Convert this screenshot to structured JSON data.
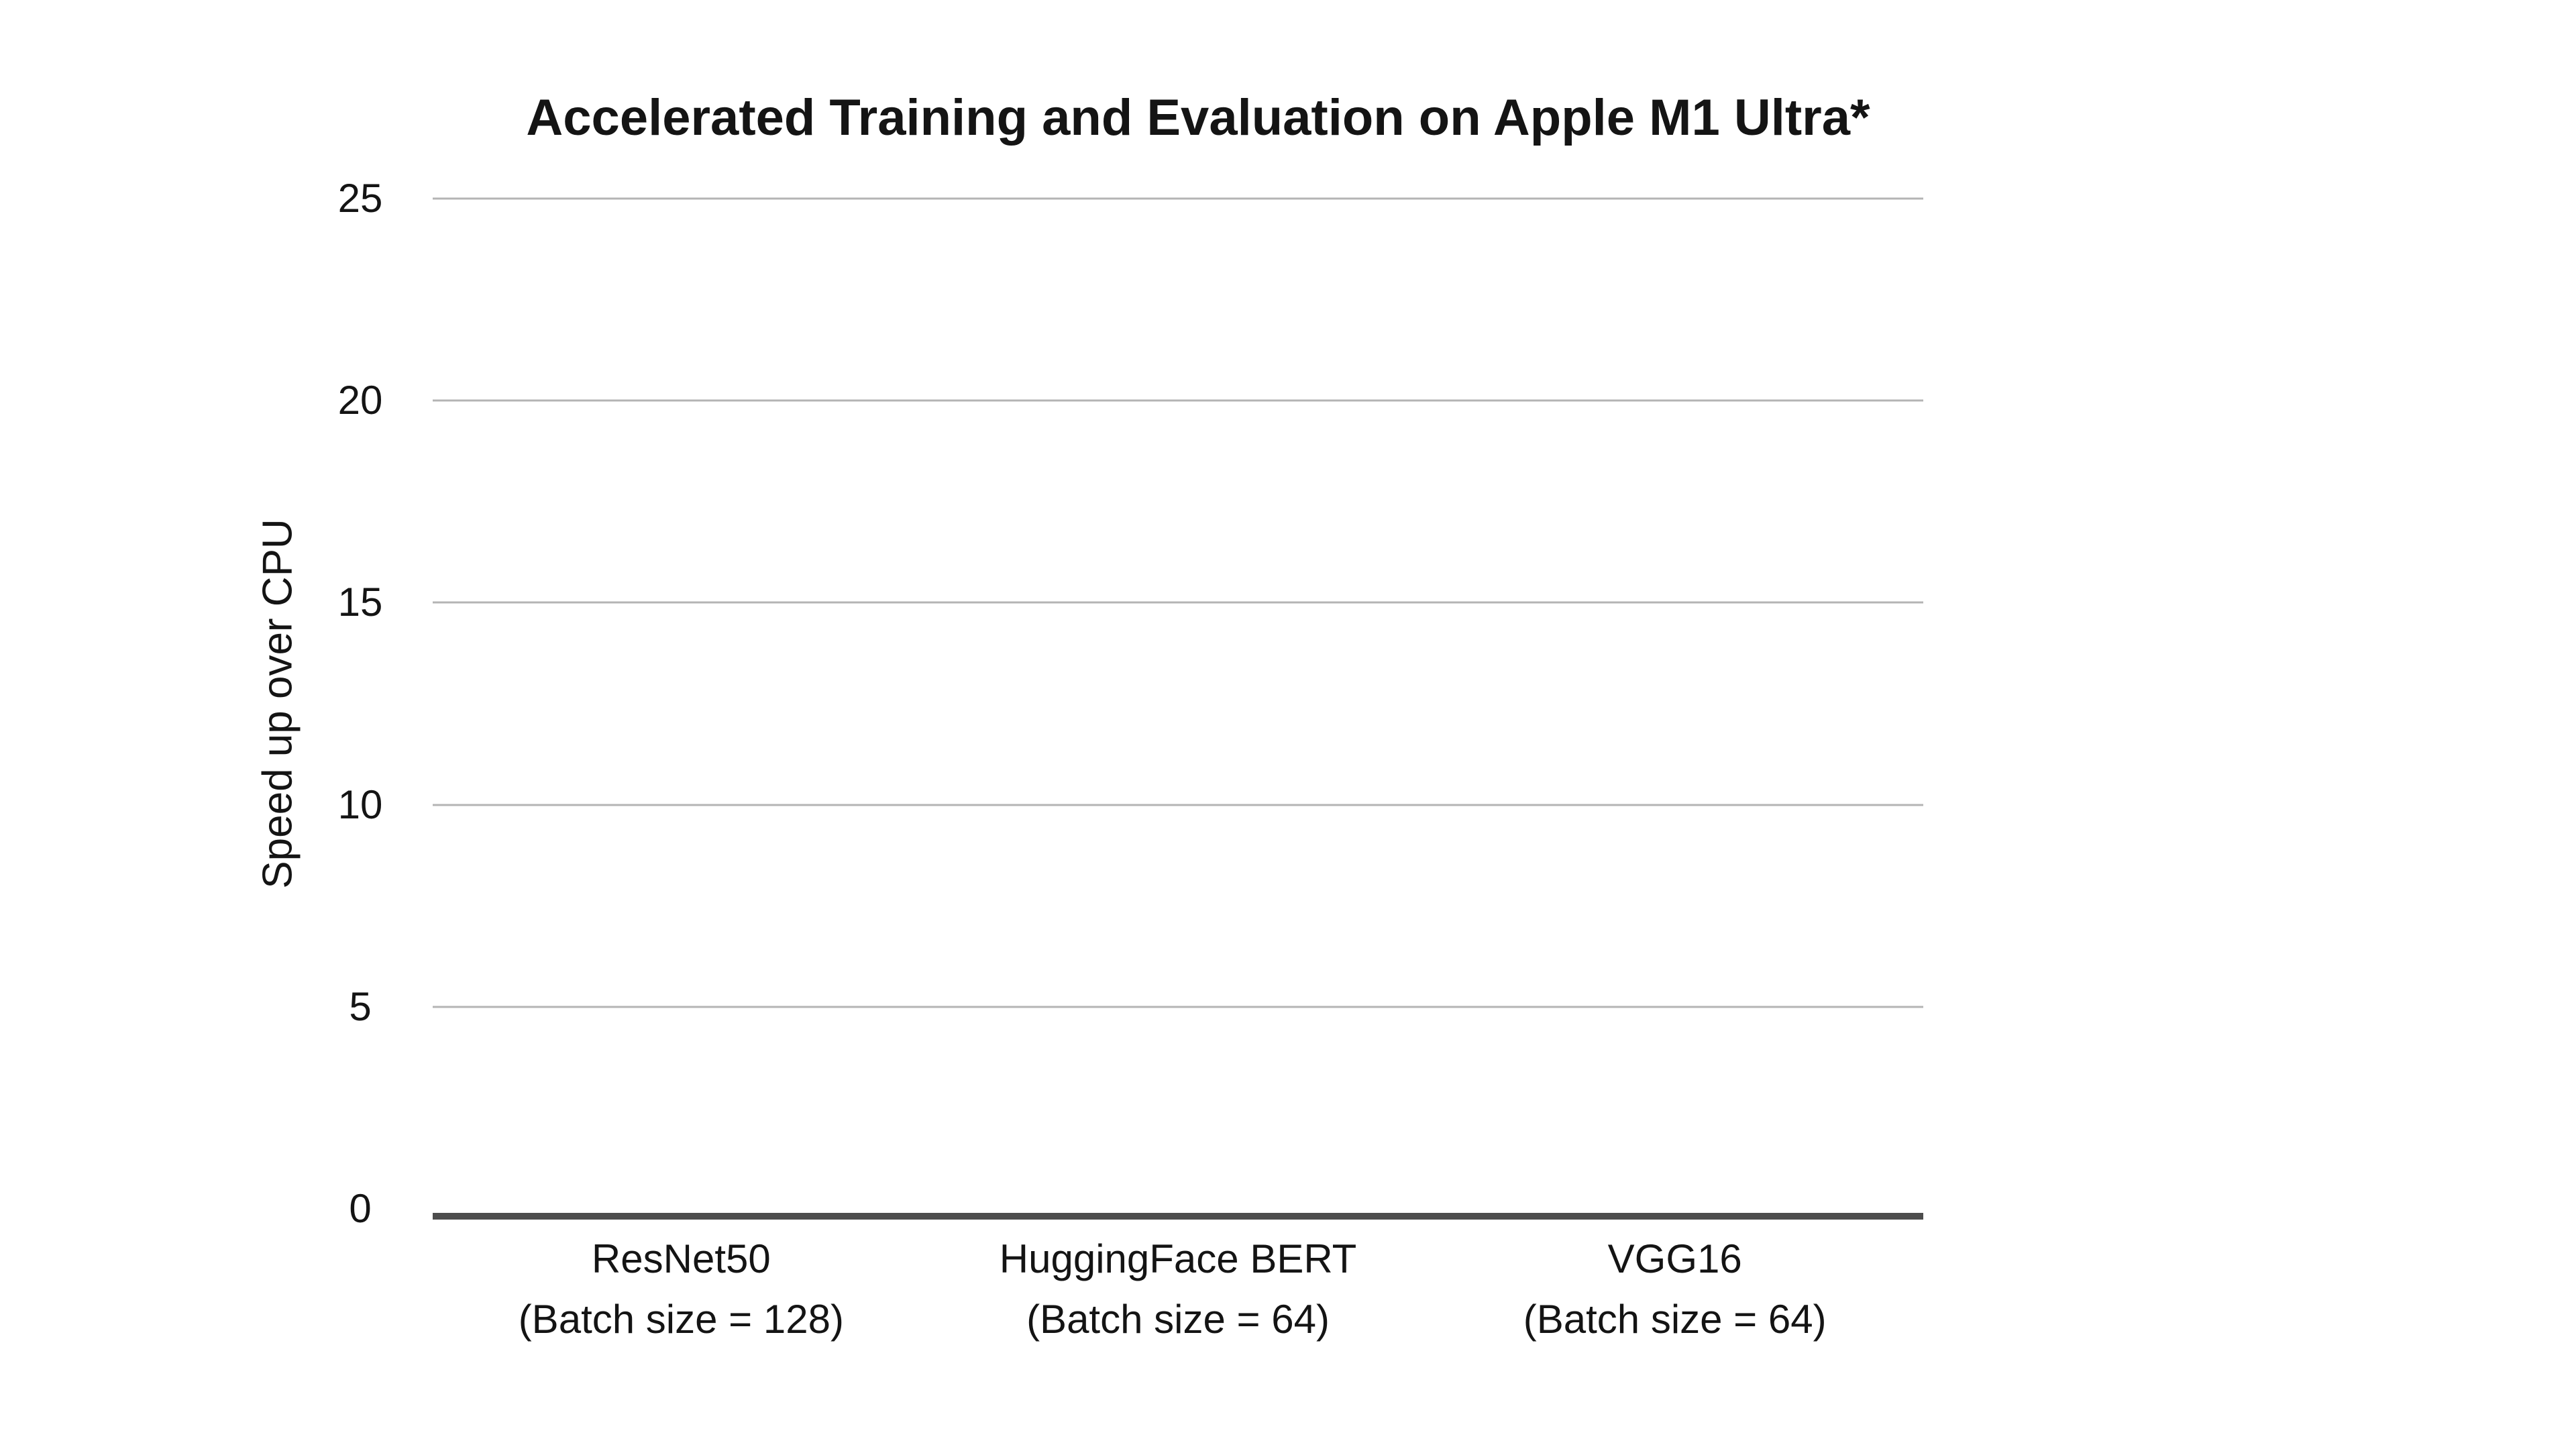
{
  "chart": {
    "colors": {
      "background": "#ffffff",
      "text": "#141414",
      "gridline": "#b4b4b4",
      "axis_line": "#4d4d4d"
    }
  },
  "chart_data": {
    "type": "bar",
    "title": "Accelerated Training and Evaluation on Apple M1 Ultra*",
    "xlabel": "",
    "ylabel": "Speed up over CPU",
    "categories": [
      {
        "label": "ResNet50",
        "sublabel": "(Batch size = 128)"
      },
      {
        "label": "HuggingFace BERT",
        "sublabel": "(Batch size = 64)"
      },
      {
        "label": "VGG16",
        "sublabel": "(Batch size = 64)"
      }
    ],
    "values": [
      0,
      0,
      0
    ],
    "ylim": [
      0,
      25
    ],
    "yticks": [
      0,
      5,
      10,
      15,
      20,
      25
    ],
    "grid": true,
    "legend_position": "none"
  }
}
